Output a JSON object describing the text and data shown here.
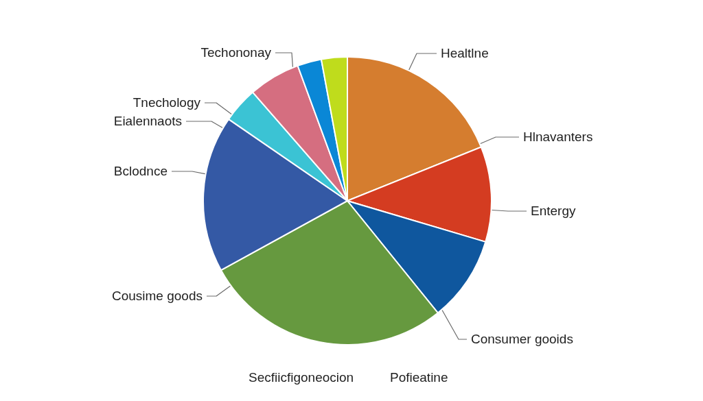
{
  "chart_data": {
    "type": "pie",
    "categories": [
      "Healtlne",
      "Entergy",
      "Consumer gooids",
      "Cousime goods",
      "Bclodnce",
      "Tnechology",
      "Techononay",
      null,
      null
    ],
    "values": [
      18.9,
      10.7,
      9.6,
      27.8,
      17.6,
      4.0,
      5.8,
      2.7,
      2.9
    ],
    "colors": [
      "#d57d2f",
      "#d43c21",
      "#0f579e",
      "#66993f",
      "#3459a5",
      "#3bc3d4",
      "#d56e80",
      "#0a87d6",
      "#bfdc1c"
    ],
    "annotations": [
      "Hlnavanters",
      "Eialennaots",
      "Secfiicfigoneocion",
      "Pofieatine"
    ]
  }
}
